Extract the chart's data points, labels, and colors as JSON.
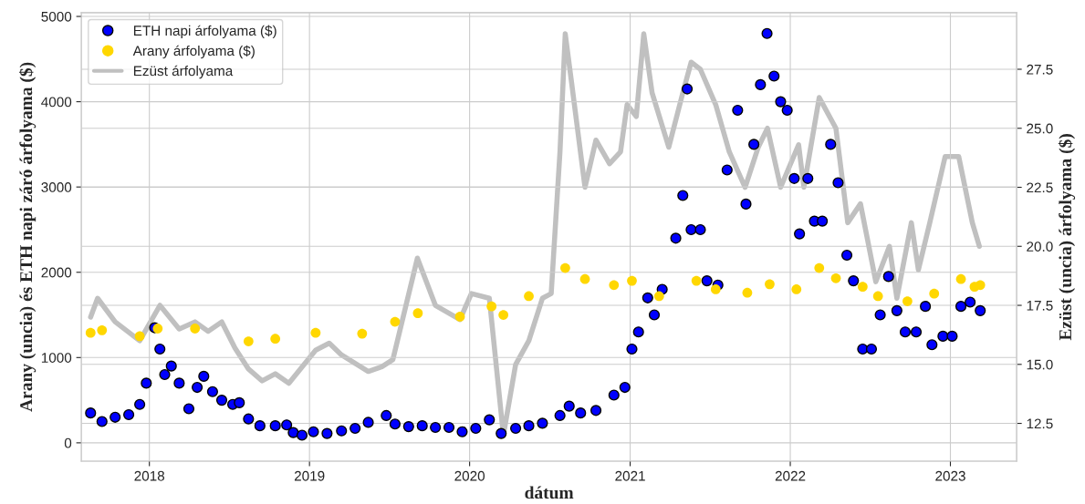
{
  "chart_data": {
    "type": "scatter",
    "xlabel": "dátum",
    "ylabel": "Arany (uncia) és ETH napi záró árfolyama ($)",
    "y2label": "Ezüst (uncia) árfolyama ($)",
    "xlim": [
      "2017-07-30",
      "2023-06-01"
    ],
    "xticks": [
      {
        "value": "2018-01-01",
        "label": "2018"
      },
      {
        "value": "2019-01-01",
        "label": "2019"
      },
      {
        "value": "2020-01-01",
        "label": "2020"
      },
      {
        "value": "2021-01-01",
        "label": "2021"
      },
      {
        "value": "2022-01-01",
        "label": "2022"
      },
      {
        "value": "2023-01-01",
        "label": "2023"
      }
    ],
    "ylim": [
      -215,
      5045
    ],
    "yticks": [
      0,
      1000,
      2000,
      3000,
      4000,
      5000
    ],
    "y2lim": [
      10.9,
      29.9
    ],
    "y2ticks": [
      12.5,
      {
        "value": 15,
        "label": "15.0"
      },
      17.5,
      {
        "value": 20,
        "label": "20.0"
      },
      22.5,
      {
        "value": 25,
        "label": "25.0"
      },
      27.5
    ],
    "grid": true,
    "legend": "top left",
    "series": [
      {
        "name": "ETH napi árfolyama ($)",
        "marker": "circle",
        "color": "#0000ff",
        "x": [
          "2017-08-20",
          "2017-09-15",
          "2017-10-15",
          "2017-11-15",
          "2017-12-10",
          "2017-12-25",
          "2018-01-13",
          "2018-01-25",
          "2018-02-05",
          "2018-02-20",
          "2018-03-10",
          "2018-04-01",
          "2018-04-20",
          "2018-05-05",
          "2018-05-25",
          "2018-06-15",
          "2018-07-10",
          "2018-07-25",
          "2018-08-15",
          "2018-09-10",
          "2018-10-15",
          "2018-11-10",
          "2018-11-25",
          "2018-12-15",
          "2019-01-10",
          "2019-02-10",
          "2019-03-15",
          "2019-04-15",
          "2019-05-15",
          "2019-06-25",
          "2019-07-15",
          "2019-08-15",
          "2019-09-15",
          "2019-10-15",
          "2019-11-15",
          "2019-12-15",
          "2020-01-15",
          "2020-02-15",
          "2020-03-13",
          "2020-04-15",
          "2020-05-15",
          "2020-06-15",
          "2020-07-25",
          "2020-08-15",
          "2020-09-10",
          "2020-10-15",
          "2020-11-25",
          "2020-12-20",
          "2021-01-05",
          "2021-01-20",
          "2021-02-10",
          "2021-02-25",
          "2021-03-15",
          "2021-04-15",
          "2021-05-01",
          "2021-05-11",
          "2021-05-20",
          "2021-06-10",
          "2021-06-25",
          "2021-07-20",
          "2021-08-10",
          "2021-09-03",
          "2021-09-22",
          "2021-10-10",
          "2021-10-25",
          "2021-11-09",
          "2021-11-25",
          "2021-12-10",
          "2021-12-25",
          "2022-01-10",
          "2022-01-22",
          "2022-02-10",
          "2022-02-25",
          "2022-03-15",
          "2022-04-03",
          "2022-04-20",
          "2022-05-10",
          "2022-05-25",
          "2022-06-15",
          "2022-07-05",
          "2022-07-25",
          "2022-08-13",
          "2022-09-01",
          "2022-09-20",
          "2022-10-15",
          "2022-11-05",
          "2022-11-20",
          "2022-12-15",
          "2023-01-05",
          "2023-01-25",
          "2023-02-15",
          "2023-03-10"
        ],
        "values": [
          350,
          250,
          300,
          330,
          450,
          700,
          1350,
          1100,
          800,
          900,
          700,
          400,
          650,
          780,
          600,
          500,
          450,
          470,
          280,
          200,
          200,
          210,
          120,
          90,
          130,
          110,
          140,
          170,
          240,
          320,
          220,
          190,
          200,
          180,
          180,
          130,
          170,
          270,
          110,
          170,
          200,
          230,
          320,
          430,
          350,
          380,
          560,
          650,
          1100,
          1300,
          1700,
          1500,
          1800,
          2400,
          2900,
          4150,
          2500,
          2500,
          1900,
          1850,
          3200,
          3900,
          2800,
          3500,
          4200,
          4800,
          4300,
          4000,
          3900,
          3100,
          2450,
          3100,
          2600,
          2600,
          3500,
          3050,
          2200,
          1900,
          1100,
          1100,
          1500,
          1950,
          1550,
          1300,
          1300,
          1600,
          1150,
          1250,
          1250,
          1600,
          1650,
          1550
        ]
      },
      {
        "name": "Arany árfolyama ($)",
        "marker": "circle",
        "color": "#ffd700",
        "x": [
          "2017-08-20",
          "2017-09-15",
          "2017-12-10",
          "2018-01-20",
          "2018-04-15",
          "2018-08-15",
          "2018-10-15",
          "2019-01-15",
          "2019-05-01",
          "2019-07-15",
          "2019-09-05",
          "2019-12-10",
          "2020-02-20",
          "2020-03-18",
          "2020-05-15",
          "2020-08-06",
          "2020-09-20",
          "2020-11-25",
          "2021-01-05",
          "2021-03-08",
          "2021-06-01",
          "2021-07-15",
          "2021-09-25",
          "2021-11-15",
          "2022-01-15",
          "2022-03-08",
          "2022-04-15",
          "2022-06-15",
          "2022-07-20",
          "2022-09-25",
          "2022-11-25",
          "2023-01-25",
          "2023-02-25",
          "2023-03-10"
        ],
        "values": [
          1290,
          1320,
          1250,
          1340,
          1340,
          1190,
          1220,
          1290,
          1280,
          1420,
          1520,
          1480,
          1600,
          1500,
          1720,
          2050,
          1920,
          1850,
          1900,
          1720,
          1900,
          1800,
          1760,
          1860,
          1800,
          2050,
          1930,
          1830,
          1720,
          1660,
          1750,
          1920,
          1830,
          1850
        ]
      },
      {
        "name": "Ezüst árfolyama",
        "type": "line",
        "axis": "y2",
        "color": "#c0c0c0",
        "x": [
          "2017-08-20",
          "2017-09-05",
          "2017-10-15",
          "2017-12-10",
          "2018-01-25",
          "2018-03-10",
          "2018-04-15",
          "2018-05-15",
          "2018-06-15",
          "2018-07-15",
          "2018-08-15",
          "2018-09-15",
          "2018-10-15",
          "2018-11-15",
          "2019-01-15",
          "2019-02-15",
          "2019-03-15",
          "2019-05-15",
          "2019-06-15",
          "2019-07-10",
          "2019-09-04",
          "2019-10-15",
          "2019-12-10",
          "2020-01-05",
          "2020-02-15",
          "2020-03-18",
          "2020-04-15",
          "2020-05-15",
          "2020-06-15",
          "2020-07-05",
          "2020-07-25",
          "2020-08-06",
          "2020-08-20",
          "2020-09-20",
          "2020-10-15",
          "2020-11-15",
          "2020-12-10",
          "2020-12-25",
          "2021-01-15",
          "2021-02-01",
          "2021-02-20",
          "2021-03-30",
          "2021-05-01",
          "2021-05-20",
          "2021-06-10",
          "2021-07-15",
          "2021-08-15",
          "2021-09-20",
          "2021-10-20",
          "2021-11-10",
          "2021-12-10",
          "2022-01-20",
          "2022-02-01",
          "2022-03-08",
          "2022-04-15",
          "2022-05-12",
          "2022-06-10",
          "2022-07-15",
          "2022-08-15",
          "2022-09-01",
          "2022-10-04",
          "2022-10-20",
          "2022-11-15",
          "2022-12-20",
          "2023-01-20",
          "2023-02-20",
          "2023-03-08"
        ],
        "values": [
          17.0,
          17.8,
          16.8,
          16.0,
          17.5,
          16.5,
          16.8,
          16.4,
          16.8,
          15.7,
          14.8,
          14.3,
          14.6,
          14.2,
          15.6,
          15.9,
          15.4,
          14.7,
          14.9,
          15.2,
          19.5,
          17.5,
          16.9,
          18.0,
          17.8,
          12.0,
          15.0,
          16.0,
          17.8,
          18.0,
          24.0,
          29.0,
          27.0,
          22.5,
          24.5,
          23.5,
          24.0,
          26.0,
          25.5,
          29.0,
          26.5,
          24.2,
          26.5,
          27.8,
          27.5,
          26.0,
          24.0,
          22.5,
          24.2,
          25.0,
          22.5,
          24.3,
          22.5,
          26.3,
          25.0,
          21.0,
          21.8,
          18.5,
          20.0,
          17.8,
          21.0,
          19.0,
          21.0,
          23.8,
          23.8,
          21.0,
          20.0
        ]
      }
    ]
  }
}
